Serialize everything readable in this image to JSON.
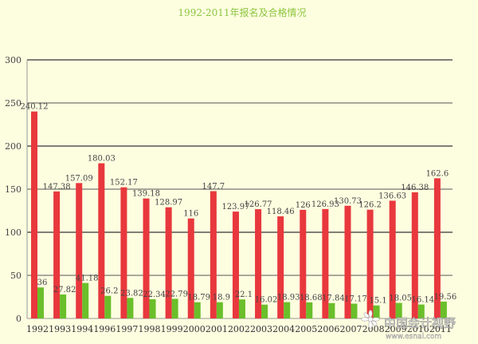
{
  "chart_data": {
    "type": "bar",
    "title": "1992-2011年报名及合格情况",
    "xlabel": "",
    "ylabel": "",
    "ylim": [
      0,
      300
    ],
    "yticks": [
      0,
      50,
      100,
      150,
      200,
      250,
      300
    ],
    "grid": true,
    "categories": [
      "1992",
      "1993",
      "1994",
      "1996",
      "1997",
      "1998",
      "1999",
      "2000",
      "2001",
      "2002",
      "2003",
      "2004",
      "2005",
      "2006",
      "2007",
      "2008",
      "2009",
      "2010",
      "2011"
    ],
    "series": [
      {
        "color": "#e8383d",
        "values": [
          240.12,
          147.38,
          157.09,
          180.03,
          152.17,
          139.18,
          128.97,
          116,
          147.7,
          123.97,
          126.77,
          118.46,
          126,
          126.93,
          130.73,
          126.2,
          136.63,
          146.38,
          162.6
        ],
        "labels": [
          "240.12",
          "147.38",
          "157.09",
          "180.03",
          "152.17",
          "139.18",
          "128.97",
          "116",
          "147.7",
          "123.97",
          "126.77",
          "118.46",
          "126",
          "126.93",
          "130.73",
          "126.2",
          "136.63",
          "146.38",
          "162.6"
        ]
      },
      {
        "color": "#6abf2a",
        "values": [
          36,
          27.82,
          41.18,
          26.2,
          23.82,
          22.34,
          22.79,
          18.79,
          18.9,
          22.1,
          16.02,
          18.93,
          18.68,
          17.84,
          17.17,
          15.1,
          18.05,
          16.14,
          19.56
        ],
        "labels": [
          "36",
          "27.82",
          "41.18",
          "26.2",
          "23.82",
          "22.34",
          "22.79",
          "18.79",
          "18.9",
          "22.1",
          "16.02",
          "18.93",
          "18.68",
          "17.84",
          "17.17",
          "15.1",
          "18.05",
          "16.14",
          "19.56"
        ]
      }
    ]
  },
  "watermark": {
    "text": "中国会计视野",
    "url": "www.esnai.com"
  }
}
